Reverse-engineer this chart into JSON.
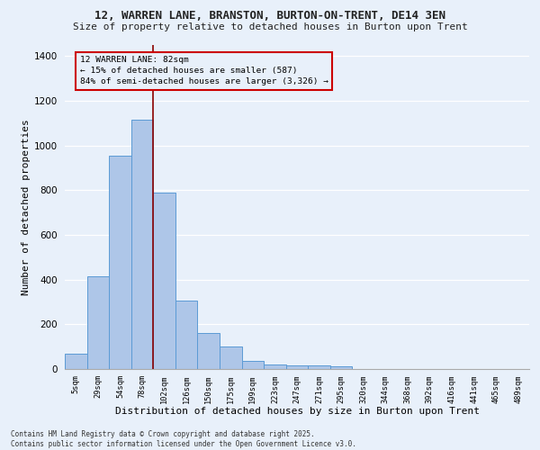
{
  "title1": "12, WARREN LANE, BRANSTON, BURTON-ON-TRENT, DE14 3EN",
  "title2": "Size of property relative to detached houses in Burton upon Trent",
  "xlabel": "Distribution of detached houses by size in Burton upon Trent",
  "ylabel": "Number of detached properties",
  "categories": [
    "5sqm",
    "29sqm",
    "54sqm",
    "78sqm",
    "102sqm",
    "126sqm",
    "150sqm",
    "175sqm",
    "199sqm",
    "223sqm",
    "247sqm",
    "271sqm",
    "295sqm",
    "320sqm",
    "344sqm",
    "368sqm",
    "392sqm",
    "416sqm",
    "441sqm",
    "465sqm",
    "489sqm"
  ],
  "values": [
    70,
    415,
    955,
    1115,
    790,
    305,
    160,
    100,
    35,
    20,
    18,
    15,
    12,
    0,
    0,
    0,
    0,
    0,
    0,
    0,
    0
  ],
  "bar_color": "#aec6e8",
  "bar_edge_color": "#5b9bd5",
  "bg_color": "#e8f0fa",
  "grid_color": "#ffffff",
  "vline_x": 3.5,
  "vline_color": "#8b0000",
  "annotation_title": "12 WARREN LANE: 82sqm",
  "annotation_line1": "← 15% of detached houses are smaller (587)",
  "annotation_line2": "84% of semi-detached houses are larger (3,326) →",
  "annotation_box_edgecolor": "#cc0000",
  "ylim": [
    0,
    1450
  ],
  "yticks": [
    0,
    200,
    400,
    600,
    800,
    1000,
    1200,
    1400
  ],
  "footer1": "Contains HM Land Registry data © Crown copyright and database right 2025.",
  "footer2": "Contains public sector information licensed under the Open Government Licence v3.0."
}
